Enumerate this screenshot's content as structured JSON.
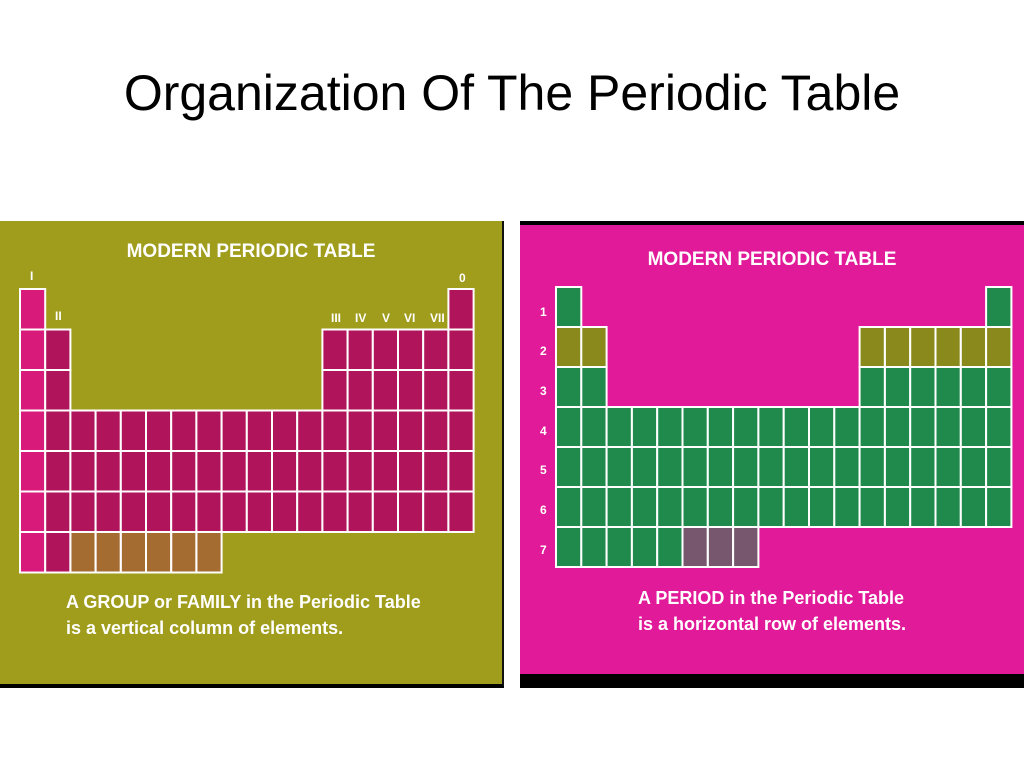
{
  "title": "Organization Of The Periodic Table",
  "left_slide": {
    "heading": "MODERN PERIODIC TABLE",
    "group_labels": [
      "I",
      "II",
      "III",
      "IV",
      "V",
      "VI",
      "VII",
      "0"
    ],
    "caption_line1": "A GROUP or FAMILY in the Periodic Table",
    "caption_line2": "is a vertical column of elements.",
    "colors": {
      "background": "#a09c1c",
      "cells": "#b0155c",
      "highlight": "#d81a7a",
      "grid": "#ffffff"
    }
  },
  "right_slide": {
    "heading": "MODERN PERIODIC TABLE",
    "period_labels": [
      "1",
      "2",
      "3",
      "4",
      "5",
      "6",
      "7"
    ],
    "caption_line1": "A PERIOD in the Periodic Table",
    "caption_line2": "is a horizontal row of elements.",
    "colors": {
      "background": "#e01a98",
      "cells": "#1f8a4c",
      "highlight": "#8a8a1c",
      "grid": "#ffffff"
    }
  }
}
